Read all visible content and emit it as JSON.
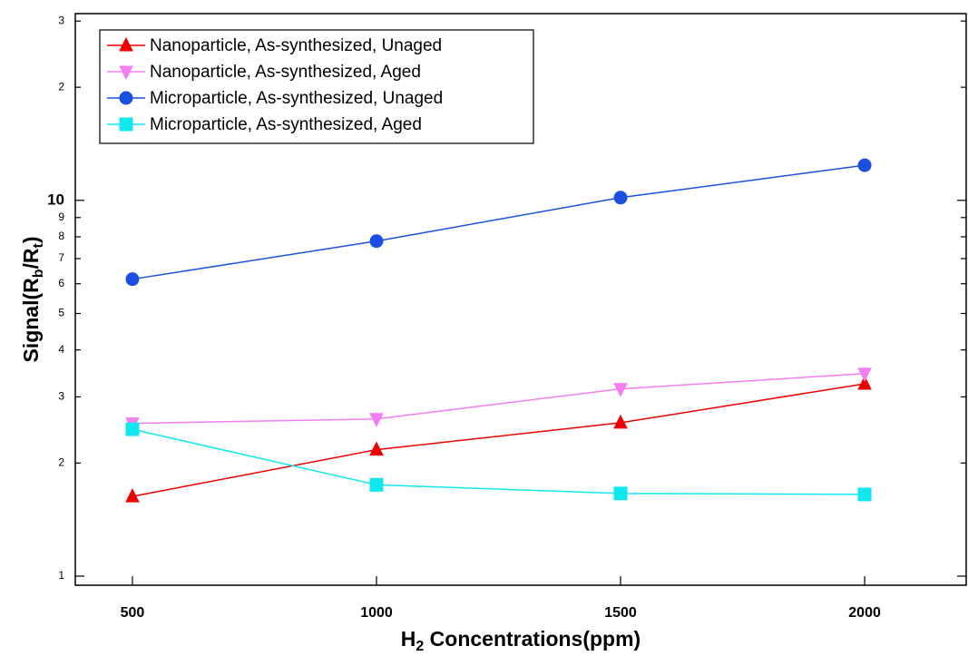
{
  "chart_data": {
    "type": "line",
    "xlabel": [
      "H",
      "2",
      " Concentrations(ppm)"
    ],
    "ylabel": [
      "Signal(R",
      "b",
      "/R",
      "t",
      ")"
    ],
    "x": [
      500,
      1000,
      1500,
      2000
    ],
    "xlim": [
      383,
      2208
    ],
    "xticks": [
      500,
      1000,
      1500,
      2000
    ],
    "ylim": [
      0.946,
      31.4
    ],
    "ylog": true,
    "yticks": [
      1,
      2,
      3,
      4,
      5,
      6,
      7,
      8,
      9,
      10,
      {
        "value": 20,
        "label": "2"
      },
      {
        "value": 30,
        "label": "3"
      }
    ],
    "legend": "upper left",
    "series": [
      {
        "name": "Nanoparticle, As-synthesized, Unaged",
        "color": "#ee0000",
        "marker": "triangle-up",
        "values": [
          1.63,
          2.17,
          2.56,
          3.25
        ]
      },
      {
        "name": "Nanoparticle, As-synthesized, Aged",
        "color": "#f27ef2",
        "marker": "triangle-down",
        "values": [
          2.55,
          2.62,
          3.15,
          3.46
        ]
      },
      {
        "name": "Microparticle, As-synthesized, Unaged",
        "color": "#1a4fe0",
        "marker": "circle",
        "values": [
          6.17,
          7.79,
          10.17,
          12.4
        ]
      },
      {
        "name": "Microparticle, As-synthesized, Aged",
        "color": "#10e8ee",
        "marker": "square",
        "values": [
          2.46,
          1.75,
          1.66,
          1.65
        ]
      }
    ]
  }
}
